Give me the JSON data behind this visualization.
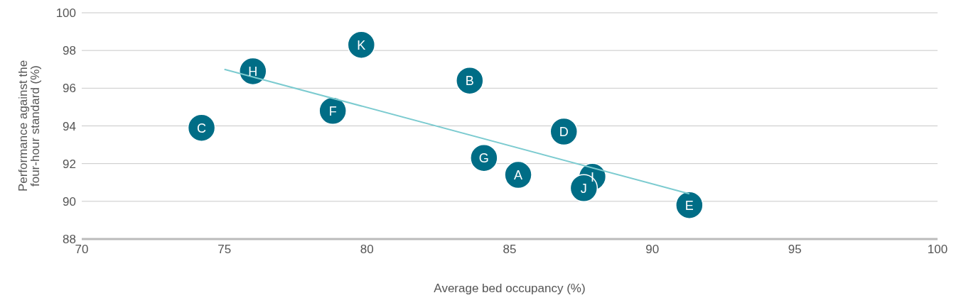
{
  "chart_data": {
    "type": "scatter",
    "xlabel": "Average bed occupancy (%)",
    "ylabel": "Performance against the four-hour standard (%)",
    "xlim": [
      70,
      100
    ],
    "xticks": [
      70,
      75,
      80,
      85,
      90,
      95,
      100
    ],
    "ylim": [
      88,
      100
    ],
    "yticks": [
      88,
      90,
      92,
      94,
      96,
      98,
      100
    ],
    "grid": "y",
    "legend": false,
    "series": [
      {
        "color": "#006d86",
        "marker": "circle",
        "x": [
          85.3,
          83.6,
          74.2,
          86.9,
          91.3,
          78.8,
          84.1,
          76.0,
          87.9,
          87.6,
          79.8
        ],
        "values": [
          91.4,
          96.4,
          93.9,
          93.7,
          89.8,
          94.8,
          92.3,
          96.9,
          91.3,
          90.7,
          98.3
        ]
      },
      {
        "type": "line",
        "color": "#7ccbd0",
        "marker": "none",
        "x": [
          75.0,
          91.3
        ],
        "values": [
          97.0,
          90.4
        ]
      }
    ],
    "annotations": [
      {
        "text": "A",
        "x": 85.3,
        "y": 91.4
      },
      {
        "text": "B",
        "x": 83.6,
        "y": 96.4
      },
      {
        "text": "C",
        "x": 74.2,
        "y": 93.9
      },
      {
        "text": "D",
        "x": 86.9,
        "y": 93.7
      },
      {
        "text": "E",
        "x": 91.3,
        "y": 89.8
      },
      {
        "text": "F",
        "x": 78.8,
        "y": 94.8
      },
      {
        "text": "G",
        "x": 84.1,
        "y": 92.3
      },
      {
        "text": "H",
        "x": 76.0,
        "y": 96.9
      },
      {
        "text": "I",
        "x": 87.9,
        "y": 91.3
      },
      {
        "text": "J",
        "x": 87.6,
        "y": 90.7
      },
      {
        "text": "K",
        "x": 79.8,
        "y": 98.3
      }
    ]
  }
}
